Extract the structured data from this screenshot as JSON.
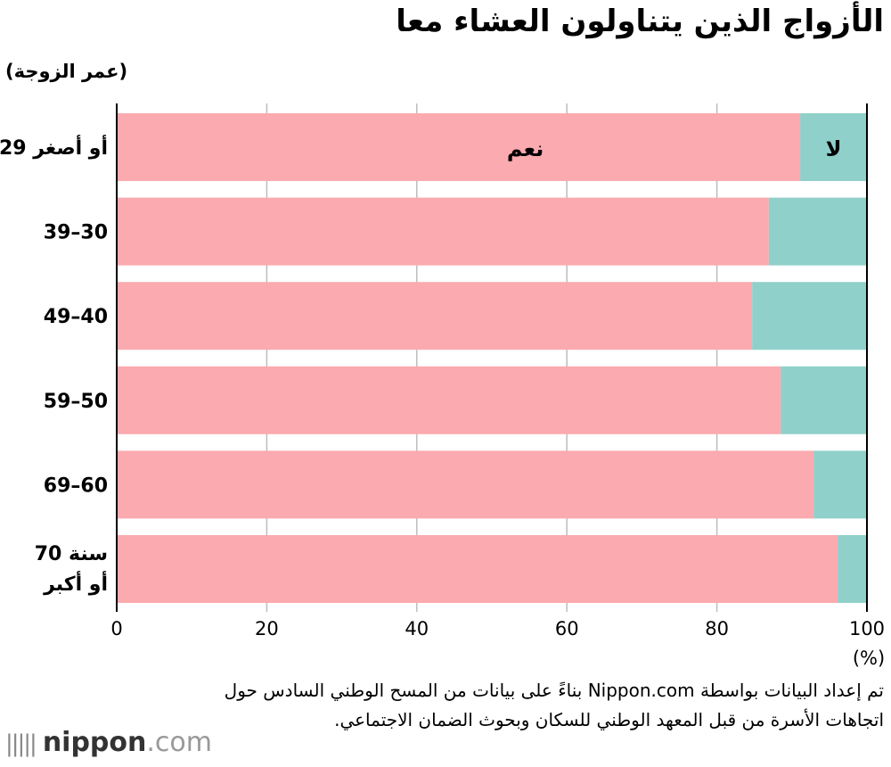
{
  "title": "الأزواج الذين يتناولون العشاء معا",
  "y_axis_title": "(عمر الزوجة)",
  "source_note": "تم إعداد البيانات بواسطة Nippon.com بناءً على بيانات من المسح الوطني السادس حول اتجاهات الأسرة من قبل المعهد الوطني للسكان وبحوث الضمان الاجتماعي.",
  "logo": {
    "brand": "nippon",
    "suffix": ".com",
    "mark_icon": "nippon-logo-icon"
  },
  "colors": {
    "yes": "#fbaaaf",
    "no": "#8fd0cb",
    "grid": "#bdbdbd",
    "axis": "#000000"
  },
  "chart_data": {
    "type": "bar",
    "orientation": "horizontal",
    "stacked": true,
    "categories": [
      "29 أو أصغر",
      "39–30",
      "49–40",
      "59–50",
      "69–60",
      "70 سنة أو أكبر"
    ],
    "series": [
      {
        "name": "نعم",
        "values": [
          91.1,
          86.9,
          84.7,
          88.5,
          92.9,
          96.1
        ]
      },
      {
        "name": "لا",
        "values": [
          8.9,
          13.1,
          15.3,
          11.5,
          7.1,
          3.9
        ]
      }
    ],
    "xlim": [
      0,
      100
    ],
    "x_ticks": [
      0,
      20,
      40,
      60,
      80,
      100
    ],
    "x_unit": "(%)",
    "grid": true,
    "series_labels_position": "inside-first-bar"
  }
}
